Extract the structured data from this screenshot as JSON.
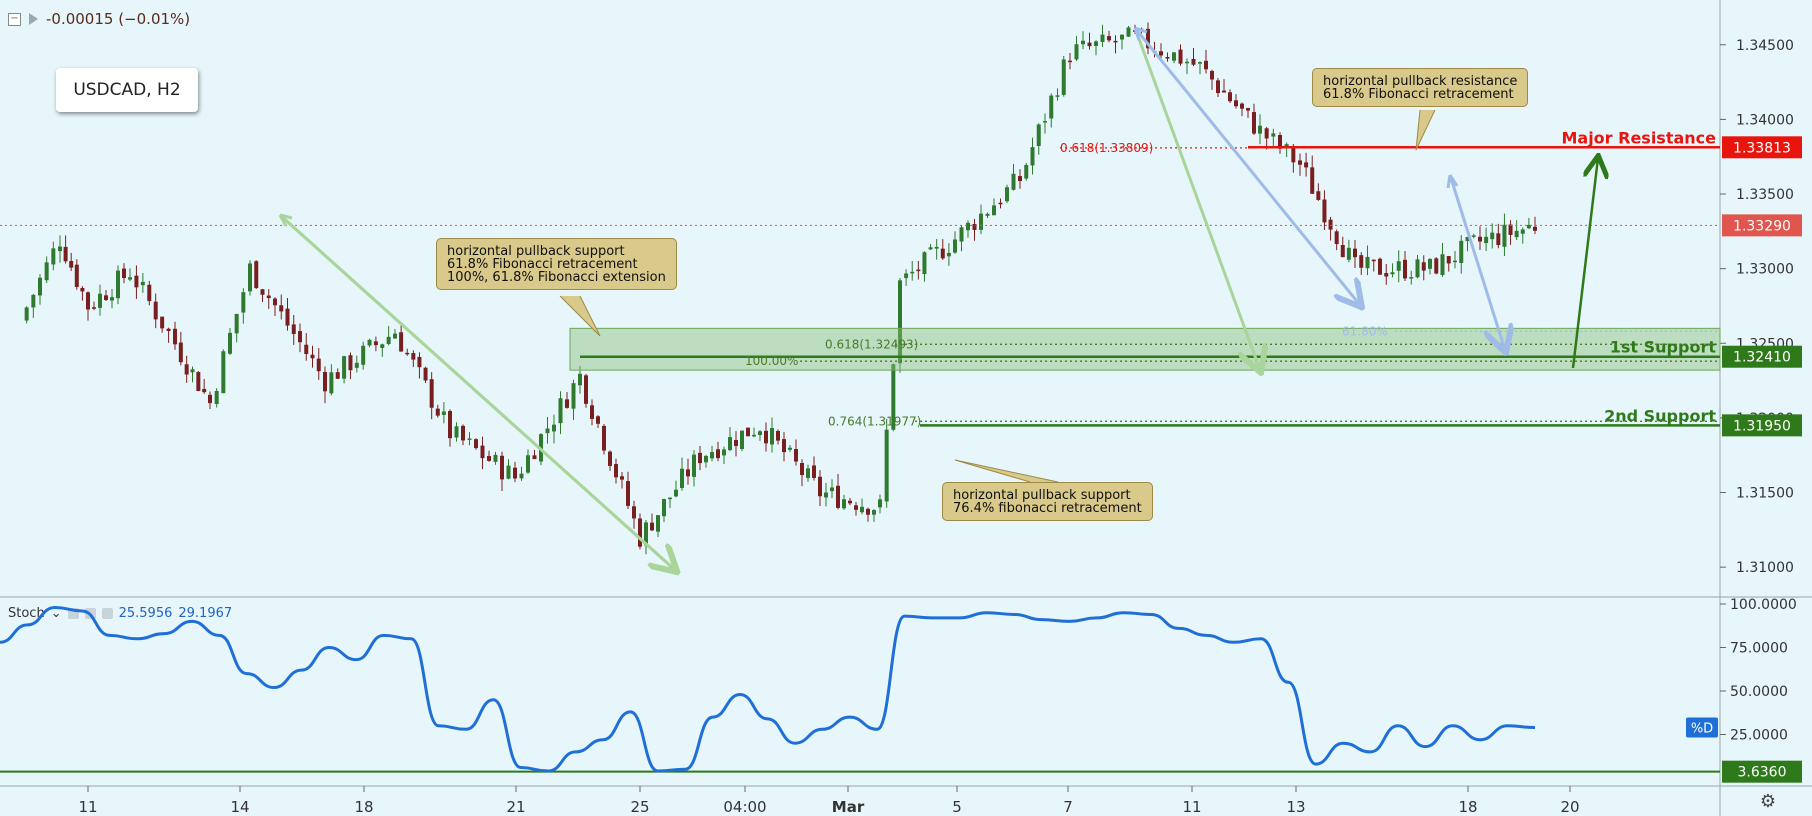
{
  "header": {
    "change_text": "-0.00015 (−0.01%)",
    "collapse_icon": "minus-box-icon",
    "flag_icon": "triangle-flag-icon"
  },
  "symbol": "USDCAD, H2",
  "colors": {
    "background": "#e6f6fb",
    "candle_up": "#2f7a2f",
    "candle_down": "#7a1f1f",
    "resistance": "#e8150f",
    "support": "#2e7a1a",
    "arrow_green": "#a9d59a",
    "arrow_blue": "#9fbbe8",
    "stoch_line": "#1f6fd6"
  },
  "callouts": [
    {
      "lines": [
        "horizontal pullback support",
        "61.8% Fibonacci retracement",
        "100%, 61.8% Fibonacci extension"
      ]
    },
    {
      "lines": [
        "horizontal pullback resistance",
        "61.8% Fibonacci retracement"
      ]
    },
    {
      "lines": [
        "horizontal pullback support",
        "76.4% fibonacci retracement"
      ]
    }
  ],
  "chart_data": [
    {
      "type": "candlestick",
      "title": "USDCAD, H2",
      "ylim": [
        1.308,
        1.348
      ],
      "y_ticks": [
        "1.34500",
        "1.34000",
        "1.33500",
        "1.33000",
        "1.32500",
        "1.32000",
        "1.31500",
        "1.31000"
      ],
      "x_ticks": [
        "11",
        "14",
        "18",
        "21",
        "25",
        "04:00",
        "Mar",
        "5",
        "7",
        "11",
        "13",
        "18",
        "20"
      ],
      "current_price": "1.33290",
      "price_series": [
        {
          "date": "Feb 07",
          "close": 1.3265
        },
        {
          "date": "Feb 08",
          "close": 1.332
        },
        {
          "date": "Feb 11",
          "close": 1.3275
        },
        {
          "date": "Feb 12",
          "close": 1.3298
        },
        {
          "date": "Feb 13",
          "close": 1.325
        },
        {
          "date": "Feb 14",
          "close": 1.321
        },
        {
          "date": "Feb 15",
          "close": 1.33
        },
        {
          "date": "Feb 18",
          "close": 1.3225
        },
        {
          "date": "Feb 19",
          "close": 1.3258
        },
        {
          "date": "Feb 20",
          "close": 1.319
        },
        {
          "date": "Feb 21",
          "close": 1.316
        },
        {
          "date": "Feb 22",
          "close": 1.3228
        },
        {
          "date": "Feb 25",
          "close": 1.312
        },
        {
          "date": "Feb 26",
          "close": 1.3175
        },
        {
          "date": "Feb 27",
          "close": 1.3195
        },
        {
          "date": "Feb 28",
          "close": 1.315
        },
        {
          "date": "Mar 01",
          "close": 1.314
        },
        {
          "date": "Mar 04",
          "close": 1.329
        },
        {
          "date": "Mar 05",
          "close": 1.332
        },
        {
          "date": "Mar 06",
          "close": 1.336
        },
        {
          "date": "Mar 07",
          "close": 1.3445
        },
        {
          "date": "Mar 08",
          "close": 1.3455
        },
        {
          "date": "Mar 11",
          "close": 1.3435
        },
        {
          "date": "Mar 12",
          "close": 1.3392
        },
        {
          "date": "Mar 13",
          "close": 1.337
        },
        {
          "date": "Mar 14",
          "close": 1.33
        },
        {
          "date": "Mar 15",
          "close": 1.33
        },
        {
          "date": "Mar 18",
          "close": 1.3318
        },
        {
          "date": "Mar 19",
          "close": 1.3329
        }
      ],
      "levels": [
        {
          "name": "Major Resistance",
          "value": 1.33813,
          "label": "1.33813",
          "color": "#e8150f"
        },
        {
          "name": "1st Support",
          "value": 1.3241,
          "label": "1.32410",
          "color": "#2e7a1a"
        },
        {
          "name": "2nd Support",
          "value": 1.3195,
          "label": "1.31950",
          "color": "#2e7a1a"
        }
      ],
      "fib_labels": [
        "0.618(1.33809)",
        "0.618(1.32493)",
        "100.00%",
        "0.764(1.31977)",
        "61.80%"
      ]
    },
    {
      "type": "line",
      "title": "Stoch",
      "legend_values": [
        "25.5956",
        "29.1967"
      ],
      "legend_arrow": "chevron-down-icon",
      "ylim": [
        0,
        100
      ],
      "y_ticks": [
        "100.0000",
        "75.0000",
        "50.0000",
        "25.0000"
      ],
      "level_label": "3.6360",
      "series_badge": "%D",
      "series": [
        {
          "name": "%D",
          "values": [
            78,
            88,
            98,
            96,
            82,
            80,
            83,
            90,
            82,
            60,
            52,
            62,
            75,
            68,
            82,
            80,
            30,
            28,
            45,
            6,
            4,
            15,
            22,
            38,
            4,
            5,
            35,
            48,
            34,
            20,
            28,
            35,
            28,
            93,
            92,
            92,
            95,
            94,
            91,
            90,
            92,
            95,
            94,
            86,
            82,
            78,
            80,
            55,
            8,
            20,
            15,
            30,
            18,
            30,
            22,
            30,
            29
          ]
        }
      ]
    }
  ]
}
